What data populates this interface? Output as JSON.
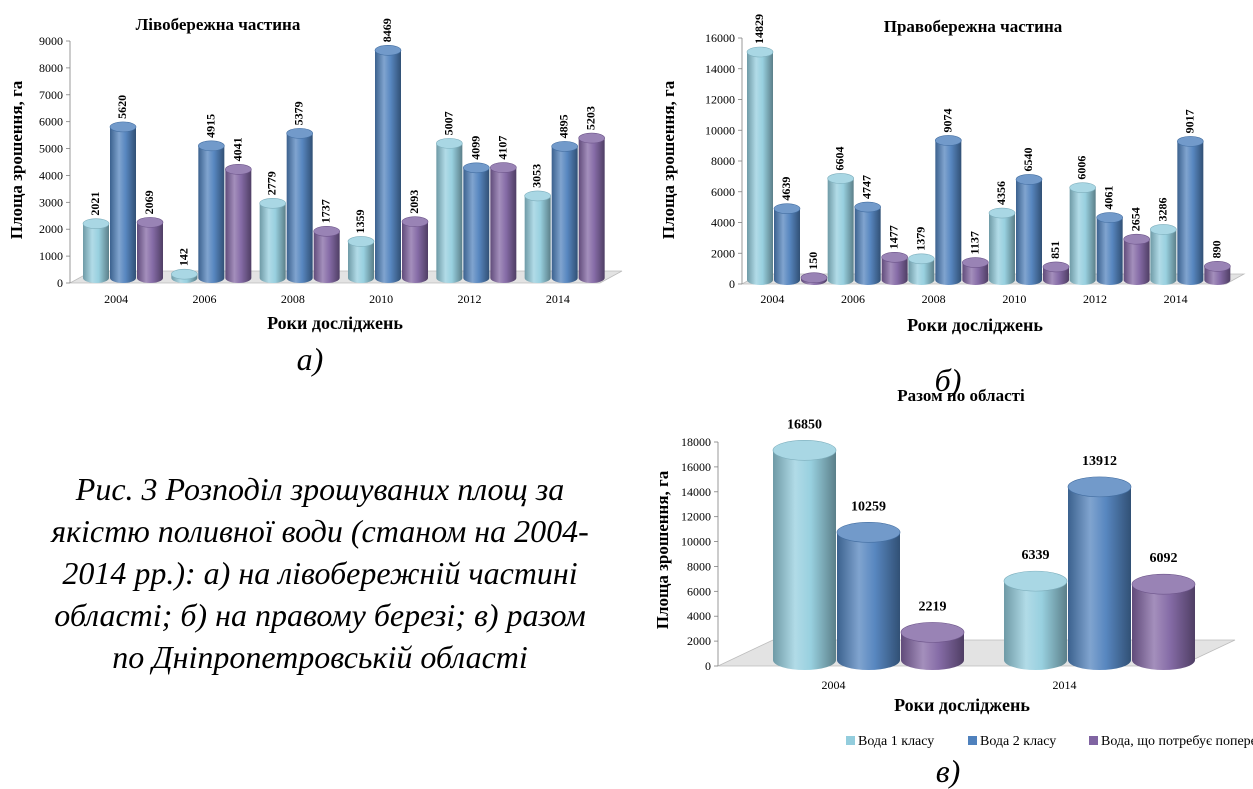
{
  "caption_lines": [
    "Рис. 3 Розподіл зрошуваних площ за",
    "якістю поливної води (станом на 2004-",
    "2014 рр.): а) на лівобережній частині",
    "області; б) на правому березі; в) разом",
    "по Дніпропетровській області"
  ],
  "colors": {
    "class1": "#93CDDD",
    "class2": "#4F81BD",
    "class3": "#8064A2",
    "floor": "#E3E3E3"
  },
  "chart_data": [
    {
      "type": "bar",
      "title": "Лівобережна частина",
      "xlabel": "Роки досліджень",
      "ylabel": "Площа зрошення, га",
      "panel_label": "а)",
      "ylim": [
        0,
        9000
      ],
      "yticks": [
        "0",
        "1000",
        "2000",
        "3000",
        "4000",
        "5000",
        "6000",
        "7000",
        "8000",
        "9000"
      ],
      "categories": [
        "2004",
        "2006",
        "2008",
        "2010",
        "2012",
        "2014"
      ],
      "series": [
        {
          "values": [
            2021,
            142,
            2779,
            1359,
            5007,
            3053
          ]
        },
        {
          "values": [
            5620,
            4915,
            5379,
            8469,
            4099,
            4895
          ]
        },
        {
          "values": [
            2069,
            4041,
            1737,
            2093,
            4107,
            5203
          ]
        }
      ]
    },
    {
      "type": "bar",
      "title": "Правобережна частина",
      "xlabel": "Роки досліджень",
      "ylabel": "Площа зрошення, га",
      "panel_label": "б)",
      "ylim": [
        0,
        16000
      ],
      "yticks": [
        "0",
        "2000",
        "4000",
        "6000",
        "8000",
        "10000",
        "12000",
        "14000",
        "16000"
      ],
      "categories": [
        "2004",
        "2006",
        "2008",
        "2010",
        "2012",
        "2014"
      ],
      "series": [
        {
          "values": [
            14829,
            6604,
            1379,
            4356,
            6006,
            3286
          ]
        },
        {
          "values": [
            4639,
            4747,
            9074,
            6540,
            4061,
            9017
          ]
        },
        {
          "values": [
            150,
            1477,
            1137,
            851,
            2654,
            890
          ]
        }
      ]
    },
    {
      "type": "bar",
      "title": "Разом по області",
      "xlabel": "Роки досліджень",
      "ylabel": "Площа зрошення, га",
      "panel_label": "в)",
      "ylim": [
        0,
        18000
      ],
      "yticks": [
        "0",
        "2000",
        "4000",
        "6000",
        "8000",
        "10000",
        "12000",
        "14000",
        "16000",
        "18000"
      ],
      "categories": [
        "2004",
        "2014"
      ],
      "legend_position": "bottom",
      "series": [
        {
          "name": "Вода 1 класу",
          "values": [
            16850,
            6339
          ]
        },
        {
          "name": "Вода 2 класу",
          "values": [
            10259,
            13912
          ]
        },
        {
          "name": "Вода, що потребує попереднього поліпшення",
          "values": [
            2219,
            6092
          ]
        }
      ]
    }
  ]
}
